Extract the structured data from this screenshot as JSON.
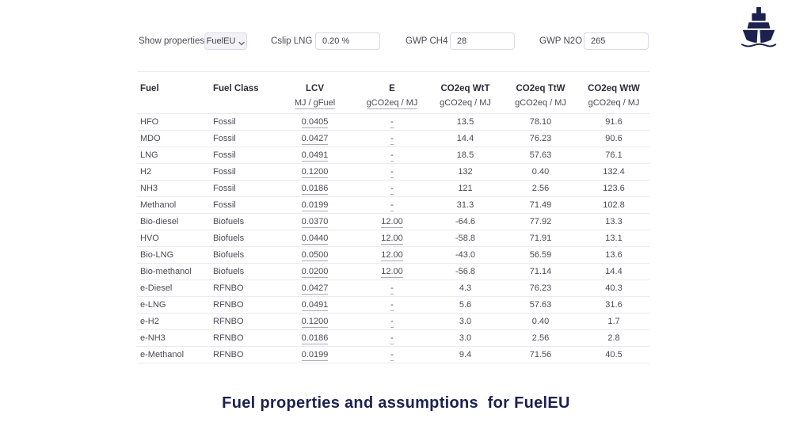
{
  "controls": {
    "show_properties_label": "Show properties",
    "properties_dropdown_value": "FuelEU",
    "cslip_label": "Cslip LNG",
    "cslip_value": "0.20 %",
    "gwp_ch4_label": "GWP CH4",
    "gwp_ch4_value": "28",
    "gwp_n2o_label": "GWP N2O",
    "gwp_n2o_value": "265"
  },
  "logo": {
    "icon": "ship-icon",
    "color": "#1c2150"
  },
  "table": {
    "columns": [
      "Fuel",
      "Fuel Class",
      "LCV",
      "E",
      "CO2eq WtT",
      "CO2eq TtW",
      "CO2eq WtW"
    ],
    "units": [
      "",
      "",
      "MJ / gFuel",
      "gCO2eq / MJ",
      "gCO2eq / MJ",
      "gCO2eq / MJ",
      "gCO2eq / MJ"
    ],
    "rows": [
      {
        "fuel": "HFO",
        "class": "Fossil",
        "lcv": "0.0405",
        "e": "-",
        "wtt": "13.5",
        "ttw": "78.10",
        "wtw": "91.6"
      },
      {
        "fuel": "MDO",
        "class": "Fossil",
        "lcv": "0.0427",
        "e": "-",
        "wtt": "14.4",
        "ttw": "76.23",
        "wtw": "90.6"
      },
      {
        "fuel": "LNG",
        "class": "Fossil",
        "lcv": "0.0491",
        "e": "-",
        "wtt": "18.5",
        "ttw": "57.63",
        "wtw": "76.1"
      },
      {
        "fuel": "H2",
        "class": "Fossil",
        "lcv": "0.1200",
        "e": "-",
        "wtt": "132",
        "ttw": "0.40",
        "wtw": "132.4"
      },
      {
        "fuel": "NH3",
        "class": "Fossil",
        "lcv": "0.0186",
        "e": "-",
        "wtt": "121",
        "ttw": "2.56",
        "wtw": "123.6"
      },
      {
        "fuel": "Methanol",
        "class": "Fossil",
        "lcv": "0.0199",
        "e": "-",
        "wtt": "31.3",
        "ttw": "71.49",
        "wtw": "102.8"
      },
      {
        "fuel": "Bio-diesel",
        "class": "Biofuels",
        "lcv": "0.0370",
        "e": "12.00",
        "wtt": "-64.6",
        "ttw": "77.92",
        "wtw": "13.3"
      },
      {
        "fuel": "HVO",
        "class": "Biofuels",
        "lcv": "0.0440",
        "e": "12.00",
        "wtt": "-58.8",
        "ttw": "71.91",
        "wtw": "13.1"
      },
      {
        "fuel": "Bio-LNG",
        "class": "Biofuels",
        "lcv": "0.0500",
        "e": "12.00",
        "wtt": "-43.0",
        "ttw": "56.59",
        "wtw": "13.6"
      },
      {
        "fuel": "Bio-methanol",
        "class": "Biofuels",
        "lcv": "0.0200",
        "e": "12.00",
        "wtt": "-56.8",
        "ttw": "71.14",
        "wtw": "14.4"
      },
      {
        "fuel": "e-Diesel",
        "class": "RFNBO",
        "lcv": "0.0427",
        "e": "-",
        "wtt": "4.3",
        "ttw": "76.23",
        "wtw": "40.3"
      },
      {
        "fuel": "e-LNG",
        "class": "RFNBO",
        "lcv": "0.0491",
        "e": "-",
        "wtt": "5.6",
        "ttw": "57.63",
        "wtw": "31.6"
      },
      {
        "fuel": "e-H2",
        "class": "RFNBO",
        "lcv": "0.1200",
        "e": "-",
        "wtt": "3.0",
        "ttw": "0.40",
        "wtw": "1.7"
      },
      {
        "fuel": "e-NH3",
        "class": "RFNBO",
        "lcv": "0.0186",
        "e": "-",
        "wtt": "3.0",
        "ttw": "2.56",
        "wtw": "2.8"
      },
      {
        "fuel": "e-Methanol",
        "class": "RFNBO",
        "lcv": "0.0199",
        "e": "-",
        "wtt": "9.4",
        "ttw": "71.56",
        "wtw": "40.5"
      }
    ]
  },
  "title": "Fuel properties and assumptions  for FuelEU",
  "colors": {
    "navy": "#1c2150",
    "body_text": "#4a4a57",
    "header_text": "#2c2c3a",
    "row_line": "#eaeaef",
    "underline": "#aaaab6"
  }
}
